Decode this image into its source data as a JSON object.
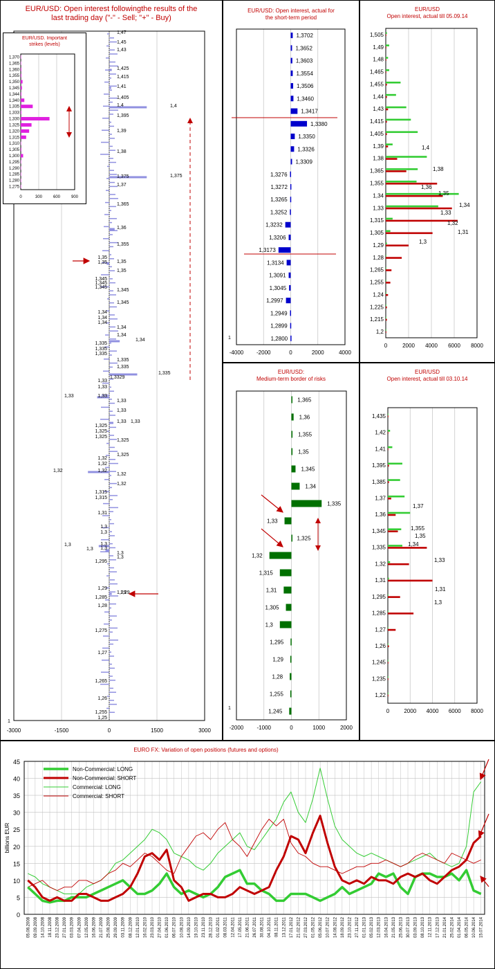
{
  "colors": {
    "title": "#c00000",
    "short_bar": "#0000cc",
    "medium_bar": "#007000",
    "p1_bar": "#9090e0",
    "strike_bar": "#e020e0",
    "green": "#33cc33",
    "red": "#c00000",
    "grid": "#c0c0c0"
  },
  "panel1": {
    "title_line1": "EUR/USD: Open interest followingthe results of the",
    "title_line2": "last trading day (\"-\" - Sell; \"+\" - Buy)",
    "xticks": [
      "-3000",
      "-1500",
      "0",
      "1500",
      "3000"
    ],
    "corner": "1",
    "labels_left": [
      {
        "v": "1,35",
        "y": 373
      },
      {
        "v": "1,35",
        "y": 380
      },
      {
        "v": "1,345",
        "y": 404
      },
      {
        "v": "1,345",
        "y": 410
      },
      {
        "v": "1,345",
        "y": 416
      },
      {
        "v": "1,34",
        "y": 452
      },
      {
        "v": "1,34",
        "y": 460
      },
      {
        "v": "1,34",
        "y": 467
      },
      {
        "v": "1,335",
        "y": 497
      },
      {
        "v": "1,335",
        "y": 505
      },
      {
        "v": "1,335",
        "y": 512
      },
      {
        "v": "1,33",
        "y": 551
      },
      {
        "v": "1,33",
        "y": 560
      },
      {
        "v": "1,33",
        "y": 573
      },
      {
        "v": "1,325",
        "y": 616
      },
      {
        "v": "1,325",
        "y": 624
      },
      {
        "v": "1,325",
        "y": 632
      },
      {
        "v": "1,32",
        "y": 663
      },
      {
        "v": "1,32",
        "y": 671
      },
      {
        "v": "1,32",
        "y": 681
      },
      {
        "v": "1,315",
        "y": 712
      },
      {
        "v": "1,315",
        "y": 720
      },
      {
        "v": "1,31",
        "y": 742
      },
      {
        "v": "1,3",
        "y": 762
      },
      {
        "v": "1,3",
        "y": 770
      },
      {
        "v": "1,3",
        "y": 787
      },
      {
        "v": "1,3",
        "y": 793
      },
      {
        "v": "1,295",
        "y": 812
      },
      {
        "v": "1,29",
        "y": 851
      },
      {
        "v": "1,285",
        "y": 864
      },
      {
        "v": "1,28",
        "y": 876
      },
      {
        "v": "1,275",
        "y": 912
      },
      {
        "v": "1,27",
        "y": 944
      },
      {
        "v": "1,265",
        "y": 985
      },
      {
        "v": "1,26",
        "y": 1010
      },
      {
        "v": "1,255",
        "y": 1030
      },
      {
        "v": "1,25",
        "y": 1038
      }
    ],
    "labels_right": [
      {
        "v": "1,47",
        "y": 48
      },
      {
        "v": "1,45",
        "y": 62
      },
      {
        "v": "1,43",
        "y": 73
      },
      {
        "v": "1,425",
        "y": 100
      },
      {
        "v": "1,415",
        "y": 112
      },
      {
        "v": "1,41",
        "y": 126
      },
      {
        "v": "1,405",
        "y": 142
      },
      {
        "v": "1,4",
        "y": 153
      },
      {
        "v": "1,395",
        "y": 168
      },
      {
        "v": "1,39",
        "y": 190
      },
      {
        "v": "1,38",
        "y": 220
      },
      {
        "v": "1,375",
        "y": 256
      },
      {
        "v": "1,37",
        "y": 268
      },
      {
        "v": "1,365",
        "y": 296
      },
      {
        "v": "1,36",
        "y": 330
      },
      {
        "v": "1,355",
        "y": 354
      },
      {
        "v": "1,35",
        "y": 379
      },
      {
        "v": "1,35",
        "y": 392
      },
      {
        "v": "1,345",
        "y": 420
      },
      {
        "v": "1,345",
        "y": 438
      },
      {
        "v": "1,34",
        "y": 474
      },
      {
        "v": "1,34",
        "y": 485
      },
      {
        "v": "1,335",
        "y": 521
      },
      {
        "v": "1,335",
        "y": 531
      },
      {
        "v": "1,33",
        "y": 580
      },
      {
        "v": "1,33",
        "y": 594
      },
      {
        "v": "1,33",
        "y": 610
      },
      {
        "v": "1,325",
        "y": 637
      },
      {
        "v": "1,325",
        "y": 658
      },
      {
        "v": "1,32",
        "y": 686
      },
      {
        "v": "1,32",
        "y": 700
      },
      {
        "v": "1,3",
        "y": 800
      },
      {
        "v": "1,3",
        "y": 806
      },
      {
        "v": "1,29",
        "y": 857
      }
    ],
    "big_labels": [
      {
        "v": "1,4",
        "y": 154,
        "x": 245
      },
      {
        "v": "1,375",
        "y": 255,
        "x": 245
      },
      {
        "v": "1,34",
        "y": 492,
        "x": 195
      },
      {
        "v": "1,335",
        "y": 540,
        "x": 228
      },
      {
        "v": "1,3329",
        "y": 546,
        "x": 158
      },
      {
        "v": "1,33",
        "y": 573,
        "x": 92
      },
      {
        "v": "1,33",
        "y": 610,
        "x": 188
      },
      {
        "v": "1,32",
        "y": 681,
        "x": 76
      },
      {
        "v": "1,3",
        "y": 788,
        "x": 92
      },
      {
        "v": "1,3",
        "y": 794,
        "x": 124
      },
      {
        "v": "1,29",
        "y": 857,
        "x": 173
      }
    ],
    "inset": {
      "title_line1": "EUR/USD. Important",
      "title_line2": "strikes (levels)"
    }
  },
  "panel2": {
    "title_line1": "EUR/USD: Open interest, actual for",
    "title_line2": "the short-term period",
    "corner": "1"
  },
  "panel3": {
    "title_line1": "EUR/USD",
    "title_line2": "Open interest, actual till 05.09.14"
  },
  "panel4": {
    "title_line1": "EUR/USD:",
    "title_line2": "Medium-term border of risks",
    "corner": "1"
  },
  "panel5": {
    "title_line1": "EUR/USD",
    "title_line2": "Open interest, actual till 03.10.14"
  },
  "panel6": {
    "title": "EURO FX: Variation of open positions (futures and options)",
    "ylabel": "billions EUR"
  },
  "chart_data": [
    {
      "type": "bar",
      "name": "EUR/USD: Open interest followingthe results of the last trading day",
      "orientation": "horizontal",
      "xlim": [
        -3000,
        3000
      ],
      "bars": [
        {
          "y": 154,
          "value": 1180
        },
        {
          "y": 255,
          "value": 1180
        },
        {
          "y": 492,
          "value": 330
        },
        {
          "y": 540,
          "value": 880
        },
        {
          "y": 573,
          "value": -380
        },
        {
          "y": 610,
          "value": 130
        },
        {
          "y": 681,
          "value": -670
        },
        {
          "y": 788,
          "value": -330
        },
        {
          "y": 794,
          "value": -120
        },
        {
          "y": 857,
          "value": 80
        },
        {
          "y": 330,
          "value": 170
        },
        {
          "y": 100,
          "value": 80
        },
        {
          "y": 126,
          "value": 60
        },
        {
          "y": 380,
          "value": -80
        }
      ],
      "note_levels": [
        "1,35",
        "1,29"
      ]
    },
    {
      "type": "bar",
      "name": "EUR/USD. Important strikes (levels)",
      "orientation": "horizontal",
      "xlim": [
        0,
        900
      ],
      "categories": [
        "1,370",
        "1,365",
        "1,360",
        "1,355",
        "1,350",
        "1,345",
        "1,344",
        "1,340",
        "1,335",
        "1,333",
        "1,330",
        "1,325",
        "1,320",
        "1,315",
        "1,310",
        "1,305",
        "1,300",
        "1,295",
        "1,290",
        "1,285",
        "1,280",
        "1,275"
      ],
      "values": [
        5,
        5,
        10,
        10,
        30,
        20,
        10,
        60,
        200,
        10,
        480,
        180,
        140,
        90,
        5,
        10,
        40,
        5,
        5,
        5,
        5,
        5
      ]
    },
    {
      "type": "bar",
      "name": "EUR/USD: Open interest, actual for the short-term period",
      "orientation": "horizontal",
      "xlim": [
        -4000,
        4000
      ],
      "categories": [
        "1,3702",
        "1,3652",
        "1,3603",
        "1,3554",
        "1,3506",
        "1,3460",
        "1,3417",
        "1,3380",
        "1,3350",
        "1,3326",
        "1,3309",
        "1,3276",
        "1,3272",
        "1,3265",
        "1,3252",
        "1,3232",
        "1,3206",
        "1,3173",
        "1,3134",
        "1,3091",
        "1,3045",
        "1,2997",
        "1,2949",
        "1,2899",
        "1,2800"
      ],
      "values": [
        150,
        100,
        120,
        150,
        180,
        200,
        500,
        1200,
        300,
        250,
        100,
        -50,
        -30,
        -40,
        -60,
        -400,
        -150,
        -900,
        -300,
        -150,
        -120,
        -350,
        -50,
        -40,
        -20
      ]
    },
    {
      "type": "bar",
      "name": "EUR/USD Open interest, actual till 05.09.14",
      "orientation": "horizontal",
      "xlim": [
        0,
        8000
      ],
      "categories": [
        "1,505",
        "1,49",
        "1,48",
        "1,465",
        "1,455",
        "1,44",
        "1,43",
        "1,415",
        "1,405",
        "1,39",
        "1,38",
        "1,365",
        "1,355",
        "1,34",
        "1,33",
        "1,315",
        "1,305",
        "1,29",
        "1,28",
        "1,265",
        "1,255",
        "1,24",
        "1,225",
        "1,215",
        "1,2"
      ],
      "series": [
        {
          "name": "LONG",
          "values": [
            100,
            300,
            200,
            300,
            1300,
            900,
            1800,
            2200,
            2800,
            600,
            3600,
            2800,
            2700,
            6400,
            4600,
            600,
            400,
            100,
            50,
            50,
            50,
            50,
            50,
            50,
            50
          ]
        },
        {
          "name": "SHORT",
          "values": [
            50,
            50,
            50,
            50,
            100,
            100,
            200,
            100,
            100,
            200,
            1000,
            1800,
            4500,
            5000,
            5800,
            6300,
            4100,
            2000,
            1400,
            500,
            400,
            200,
            100,
            100,
            50
          ]
        }
      ],
      "labels": [
        "1,4",
        "1,38",
        "1,36",
        "1,35",
        "1,34",
        "1,33",
        "1,32",
        "1,31",
        "1,3"
      ]
    },
    {
      "type": "bar",
      "name": "EUR/USD: Medium-term border of risks",
      "orientation": "horizontal",
      "xlim": [
        -2000,
        2000
      ],
      "categories": [
        "1,365",
        "1,36",
        "1,355",
        "1,35",
        "1,345",
        "1,34",
        "1,335",
        "1,33",
        "1,325",
        "1,32",
        "1,315",
        "1,31",
        "1,305",
        "1,3",
        "1,295",
        "1,29",
        "1,28",
        "1,255",
        "1,245"
      ],
      "values": [
        20,
        80,
        40,
        40,
        150,
        300,
        1100,
        -250,
        0,
        -800,
        -420,
        -280,
        -200,
        -420,
        -30,
        -40,
        -60,
        -40,
        -80
      ]
    },
    {
      "type": "bar",
      "name": "EUR/USD Open interest, actual till 03.10.14",
      "orientation": "horizontal",
      "xlim": [
        0,
        8000
      ],
      "categories": [
        "1,435",
        "1,42",
        "1,41",
        "1,395",
        "1,385",
        "1,37",
        "1,36",
        "1,345",
        "1,335",
        "1,32",
        "1,31",
        "1,295",
        "1,285",
        "1,27",
        "1,26",
        "1,245",
        "1,235",
        "1,22"
      ],
      "series": [
        {
          "name": "LONG",
          "values": [
            50,
            200,
            400,
            1300,
            1100,
            1500,
            2000,
            1200,
            1300,
            200,
            100,
            50,
            50,
            50,
            50,
            50,
            50,
            50
          ]
        },
        {
          "name": "SHORT",
          "values": [
            50,
            50,
            50,
            100,
            100,
            300,
            700,
            900,
            3500,
            1900,
            4000,
            1100,
            2300,
            700,
            100,
            50,
            50,
            50
          ]
        }
      ],
      "labels": [
        "1,37",
        "1,355",
        "1,35",
        "1,34",
        "1,33",
        "1,31",
        "1,3"
      ]
    },
    {
      "type": "line",
      "name": "EURO FX: Variation of open positions (futures and options)",
      "ylabel": "billions EUR",
      "ylim": [
        0,
        45
      ],
      "yticks": [
        "0",
        "5",
        "10",
        "15",
        "20",
        "25",
        "30",
        "35",
        "40",
        "45"
      ],
      "x": [
        "05.08.2008",
        "09.09.2008",
        "14.10.2008",
        "18.11.2008",
        "23.12.2008",
        "27.01.2009",
        "03.03.2009",
        "07.04.2009",
        "12.05.2009",
        "16.06.2009",
        "21.07.2009",
        "25.08.2009",
        "29.09.2009",
        "03.11.2009",
        "08.12.2009",
        "12.01.2010",
        "16.02.2010",
        "23.03.2010",
        "27.04.2010",
        "01.06.2010",
        "06.07.2010",
        "10.08.2010",
        "14.09.2010",
        "19.10.2010",
        "23.11.2010",
        "28.12.2010",
        "01.02.2011",
        "08.03.2011",
        "12.04.2011",
        "17.05.2011",
        "21.06.2011",
        "26.07.2011",
        "30.08.2011",
        "04.10.2011",
        "08.11.2011",
        "13.12.2011",
        "17.01.2012",
        "21.02.2012",
        "27.03.2012",
        "01.05.2012",
        "05.06.2012",
        "10.07.2012",
        "14.08.2012",
        "18.09.2012",
        "23.10.2012",
        "27.11.2012",
        "01.01.2013",
        "05.02.2013",
        "12.03.2013",
        "16.04.2013",
        "21.05.2013",
        "25.06.2013",
        "30.07.2013",
        "03.09.2013",
        "08.10.2013",
        "12.11.2013",
        "17.12.2013",
        "21.01.2014",
        "25.02.2014",
        "01.04.2014",
        "06.05.2014",
        "10.06.2014",
        "15.07.2014"
      ],
      "series": [
        {
          "name": "Non-Commercial: LONG",
          "values": [
            8,
            6,
            4,
            3.5,
            4,
            4,
            5,
            5,
            5,
            6,
            7,
            8,
            9,
            10,
            8,
            6,
            6,
            7,
            9,
            12,
            8,
            6,
            7,
            6,
            5,
            6,
            8,
            11,
            12,
            13,
            9,
            9,
            7,
            6,
            4,
            4,
            6,
            6,
            6,
            5,
            4,
            5,
            6,
            8,
            6,
            7,
            8,
            9,
            12,
            11,
            12,
            8,
            6,
            11,
            12,
            12,
            11,
            11,
            12,
            10,
            13,
            7,
            6
          ]
        },
        {
          "name": "Non-Commercial: SHORT",
          "values": [
            10,
            8,
            5,
            4,
            5,
            4,
            4,
            6,
            6,
            5,
            4,
            4,
            5,
            6,
            8,
            12,
            17,
            18,
            16,
            19,
            10,
            8,
            4,
            5,
            6,
            6,
            5,
            5,
            6,
            8,
            7,
            6,
            7,
            8,
            13,
            17,
            23,
            22,
            18,
            24,
            29,
            21,
            14,
            10,
            9,
            10,
            9,
            11,
            10,
            10,
            9,
            11,
            12,
            11,
            12,
            10,
            9,
            11,
            13,
            14,
            16,
            21,
            23
          ]
        },
        {
          "name": "Commercial: LONG",
          "values": [
            12,
            11,
            9,
            8,
            7,
            6,
            6,
            6,
            8,
            9,
            10,
            12,
            15,
            16,
            18,
            20,
            22,
            25,
            24,
            22,
            18,
            17,
            16,
            14,
            13,
            15,
            18,
            20,
            22,
            24,
            20,
            19,
            22,
            25,
            28,
            33,
            36,
            30,
            27,
            34,
            43,
            34,
            26,
            22,
            20,
            18,
            17,
            18,
            17,
            16,
            15,
            14,
            15,
            16,
            17,
            18,
            16,
            15,
            14,
            15,
            20,
            36,
            39
          ]
        },
        {
          "name": "Commercial: SHORT",
          "values": [
            8,
            9,
            10,
            8,
            7,
            8,
            8,
            10,
            10,
            9,
            10,
            12,
            13,
            15,
            14,
            16,
            18,
            17,
            15,
            13,
            12,
            17,
            20,
            23,
            24,
            22,
            25,
            27,
            22,
            20,
            17,
            21,
            25,
            28,
            26,
            28,
            21,
            18,
            17,
            15,
            14,
            14,
            13,
            12,
            13,
            14,
            14,
            15,
            15,
            16,
            15,
            14,
            15,
            17,
            18,
            17,
            16,
            15,
            18,
            17,
            16,
            15,
            16
          ]
        }
      ]
    }
  ]
}
